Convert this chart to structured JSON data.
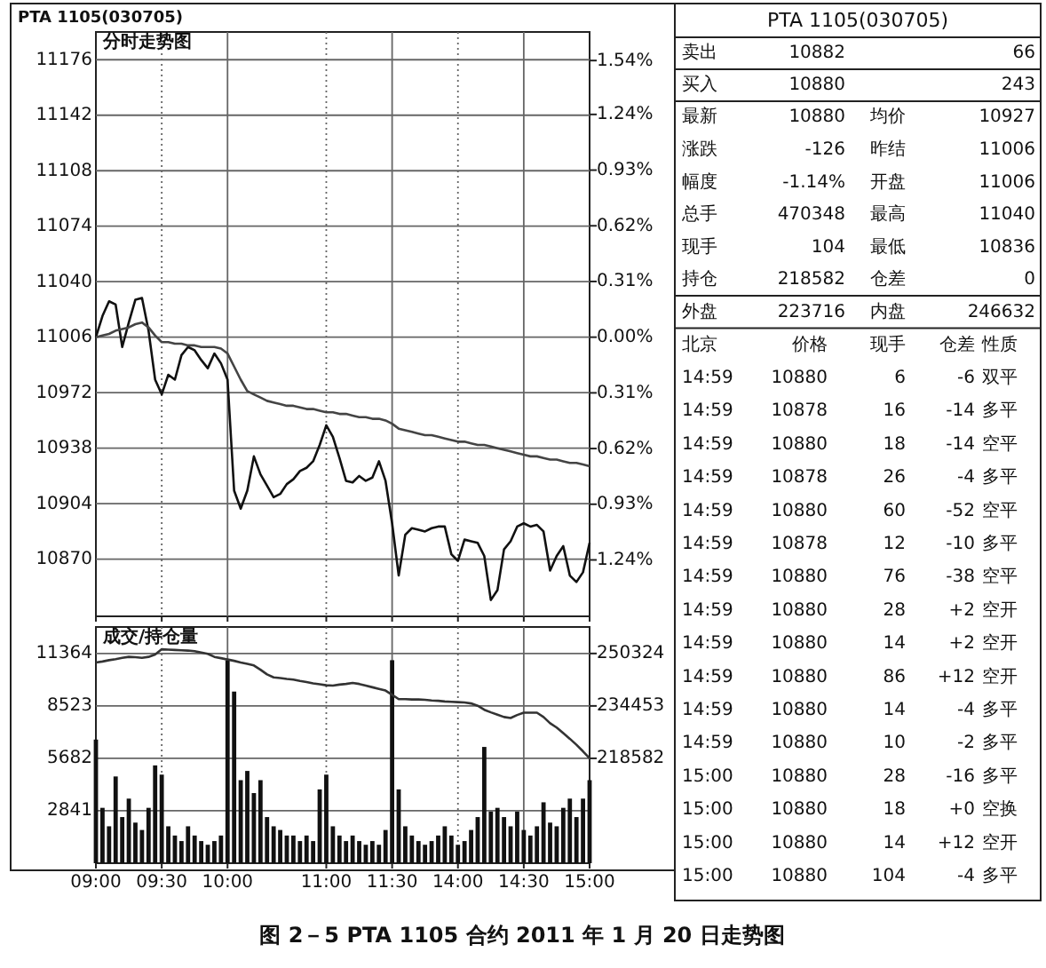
{
  "chart_data": [
    {
      "type": "line",
      "title": "分时走势图",
      "annotations": [
        "PTA 1105(030705)",
        "图 2－5 PTA 1105 合约 2011 年 1 月 20 日走势图"
      ],
      "categories": [
        null,
        null,
        null,
        null,
        null,
        null,
        null,
        null,
        null,
        null,
        null,
        null,
        null,
        null,
        null,
        null,
        null,
        null,
        null,
        null,
        null,
        null,
        null,
        null,
        null,
        null,
        null,
        null,
        null,
        null,
        null,
        null,
        null,
        null,
        null,
        null,
        null,
        null,
        null,
        null,
        null,
        null,
        null,
        null,
        null,
        null,
        null,
        null,
        null,
        null,
        null,
        null,
        null,
        null,
        null,
        null,
        null,
        null,
        null,
        null,
        null,
        null,
        null,
        null,
        null,
        null,
        null,
        null,
        null,
        null,
        null,
        null,
        null,
        null,
        null,
        null
      ],
      "ylim": [
        10835,
        11193
      ],
      "yticks": [
        10870,
        10904,
        10938,
        10972,
        11006,
        11040,
        11074,
        11108,
        11142,
        11176
      ],
      "y2lim": [
        -1.554,
        1.699
      ],
      "y2ticks": [
        {
          "value": 1.54,
          "label": "1.54%"
        },
        {
          "value": 1.24,
          "label": "1.24%"
        },
        {
          "value": 0.93,
          "label": "0.93%"
        },
        {
          "value": 0.62,
          "label": "0.62%"
        },
        {
          "value": 0.31,
          "label": "0.31%"
        },
        {
          "value": 0,
          "label": "0.00%"
        },
        {
          "value": -0.31,
          "label": "0.31%"
        },
        {
          "value": -0.62,
          "label": "0.62%"
        },
        {
          "value": -0.93,
          "label": "0.93%"
        },
        {
          "value": -1.24,
          "label": "1.24%"
        }
      ],
      "tick_labels": "y",
      "grid": true,
      "series": [
        {
          "color": "#111111",
          "values": [
            11006,
            11019,
            11028,
            11026,
            11000,
            11015,
            11029,
            11030,
            11010,
            10980,
            10971,
            10983,
            10980,
            10995,
            11000,
            10998,
            10992,
            10987,
            10996,
            10990,
            10980,
            10912,
            10901,
            10912,
            10933,
            10922,
            10915,
            10908,
            10910,
            10916,
            10919,
            10924,
            10926,
            10930,
            10940,
            10952,
            10945,
            10932,
            10918,
            10917,
            10921,
            10918,
            10920,
            10930,
            10918,
            10892,
            10860,
            10885,
            10889,
            10888,
            10887,
            10889,
            10890,
            10890,
            10873,
            10869,
            10882,
            10881,
            10880,
            10872,
            10845,
            10851,
            10876,
            10881,
            10890,
            10892,
            10890,
            10891,
            10887,
            10863,
            10872,
            10878,
            10860,
            10856,
            10862,
            10880
          ]
        },
        {
          "color": "#444444",
          "values": [
            11006,
            11007,
            11008,
            11010,
            11011,
            11012,
            11014,
            11015,
            11012,
            11007,
            11003,
            11003,
            11002,
            11002,
            11001,
            11001,
            11000,
            11000,
            11000,
            10999,
            10996,
            10988,
            10980,
            10973,
            10971,
            10969,
            10967,
            10966,
            10965,
            10964,
            10964,
            10963,
            10962,
            10962,
            10961,
            10960,
            10960,
            10959,
            10959,
            10958,
            10957,
            10957,
            10956,
            10956,
            10955,
            10953,
            10950,
            10949,
            10948,
            10947,
            10946,
            10946,
            10945,
            10944,
            10943,
            10942,
            10942,
            10941,
            10940,
            10940,
            10939,
            10938,
            10937,
            10936,
            10935,
            10934,
            10933,
            10933,
            10932,
            10931,
            10931,
            10930,
            10929,
            10929,
            10928,
            10927
          ]
        }
      ]
    },
    {
      "type": "bar",
      "title": "成交/持仓量",
      "categories": [
        "09:00",
        null,
        null,
        null,
        null,
        null,
        null,
        null,
        null,
        null,
        "09:30",
        null,
        null,
        null,
        null,
        null,
        null,
        null,
        null,
        null,
        "10:00",
        null,
        null,
        null,
        null,
        null,
        null,
        null,
        null,
        null,
        null,
        null,
        null,
        null,
        null,
        "11:00",
        null,
        null,
        null,
        null,
        null,
        null,
        null,
        null,
        null,
        "11:30",
        null,
        null,
        null,
        null,
        null,
        null,
        null,
        null,
        null,
        "14:00",
        null,
        null,
        null,
        null,
        null,
        null,
        null,
        null,
        null,
        "14:30",
        null,
        null,
        null,
        null,
        null,
        null,
        null,
        null,
        null,
        "15:00"
      ],
      "ylim": [
        0,
        12800
      ],
      "yticks": [
        2841,
        5682,
        8523,
        11364
      ],
      "y2lim": [
        186840,
        258346
      ],
      "y2ticks": [
        218582,
        234453,
        250324
      ],
      "grid": true,
      "series": [
        {
          "type": "bar",
          "color": "#111111",
          "values": [
            6700,
            3000,
            2000,
            4700,
            2500,
            3500,
            2200,
            1800,
            3000,
            5300,
            4800,
            2000,
            1500,
            1200,
            2000,
            1500,
            1200,
            1000,
            1200,
            1500,
            11000,
            9300,
            4500,
            5000,
            3800,
            4500,
            2500,
            2000,
            1800,
            1500,
            1500,
            1200,
            1500,
            1200,
            4000,
            4800,
            2000,
            1500,
            1200,
            1500,
            1200,
            1000,
            1200,
            1000,
            1800,
            11000,
            4000,
            2000,
            1500,
            1200,
            1000,
            1200,
            1500,
            2000,
            1500,
            1000,
            1200,
            1800,
            2500,
            6300,
            2800,
            3000,
            2500,
            2000,
            2800,
            1800,
            1500,
            2000,
            3300,
            2200,
            2000,
            3000,
            3500,
            2500,
            3500,
            4500
          ]
        },
        {
          "type": "line",
          "axis": "y2",
          "color": "#333333",
          "values": [
            247600,
            247900,
            248300,
            248600,
            249000,
            249300,
            249200,
            249000,
            249300,
            250000,
            251600,
            251500,
            251400,
            251300,
            251200,
            251000,
            250600,
            250200,
            249300,
            248900,
            248500,
            248100,
            247600,
            247200,
            246700,
            245400,
            244000,
            243100,
            242900,
            242600,
            242400,
            242000,
            241700,
            241300,
            241000,
            240700,
            240600,
            240900,
            241100,
            241400,
            241100,
            240600,
            240100,
            239600,
            239100,
            237800,
            236500,
            236500,
            236400,
            236400,
            236300,
            236100,
            236000,
            235800,
            235700,
            235600,
            235500,
            235200,
            234500,
            233300,
            232500,
            231800,
            231100,
            230800,
            231700,
            232400,
            232400,
            232400,
            231100,
            229200,
            227900,
            226200,
            224500,
            222700,
            220700,
            218600
          ]
        }
      ]
    },
    {
      "type": "other",
      "title": "PTA 1105(030705)",
      "annotations": [
        "卖出",
        "10882",
        "66",
        "买入",
        "10880",
        "243",
        "最新",
        "10880",
        "均价",
        "10927",
        "涨跌",
        "-126",
        "昨结",
        "11006",
        "幅度",
        "-1.14%",
        "开盘",
        "11006",
        "总手",
        "470348",
        "最高",
        "11040",
        "现手",
        "104",
        "最低",
        "10836",
        "持仓",
        "218582",
        "仓差",
        "0",
        "外盘",
        "223716",
        "内盘",
        "246632",
        "北京",
        "价格",
        "现手",
        "仓差",
        "性质",
        "14:59",
        "10880",
        "6",
        "-6",
        "双平",
        "14:59",
        "10878",
        "16",
        "-14",
        "多平",
        "14:59",
        "10880",
        "18",
        "-14",
        "空平",
        "14:59",
        "10878",
        "26",
        "-4",
        "多平",
        "14:59",
        "10880",
        "60",
        "-52",
        "空平",
        "14:59",
        "10878",
        "12",
        "-10",
        "多平",
        "14:59",
        "10880",
        "76",
        "-38",
        "空平",
        "14:59",
        "10880",
        "28",
        "+2",
        "空开",
        "14:59",
        "10880",
        "14",
        "+2",
        "空开",
        "14:59",
        "10880",
        "86",
        "+12",
        "空开",
        "14:59",
        "10880",
        "14",
        "-4",
        "多平",
        "14:59",
        "10880",
        "10",
        "-2",
        "多平",
        "15:00",
        "10880",
        "28",
        "-16",
        "多平",
        "15:00",
        "10880",
        "18",
        "+0",
        "空换",
        "15:00",
        "10880",
        "14",
        "+12",
        "空开",
        "15:00",
        "10880",
        "104",
        "-4",
        "多平"
      ]
    }
  ]
}
